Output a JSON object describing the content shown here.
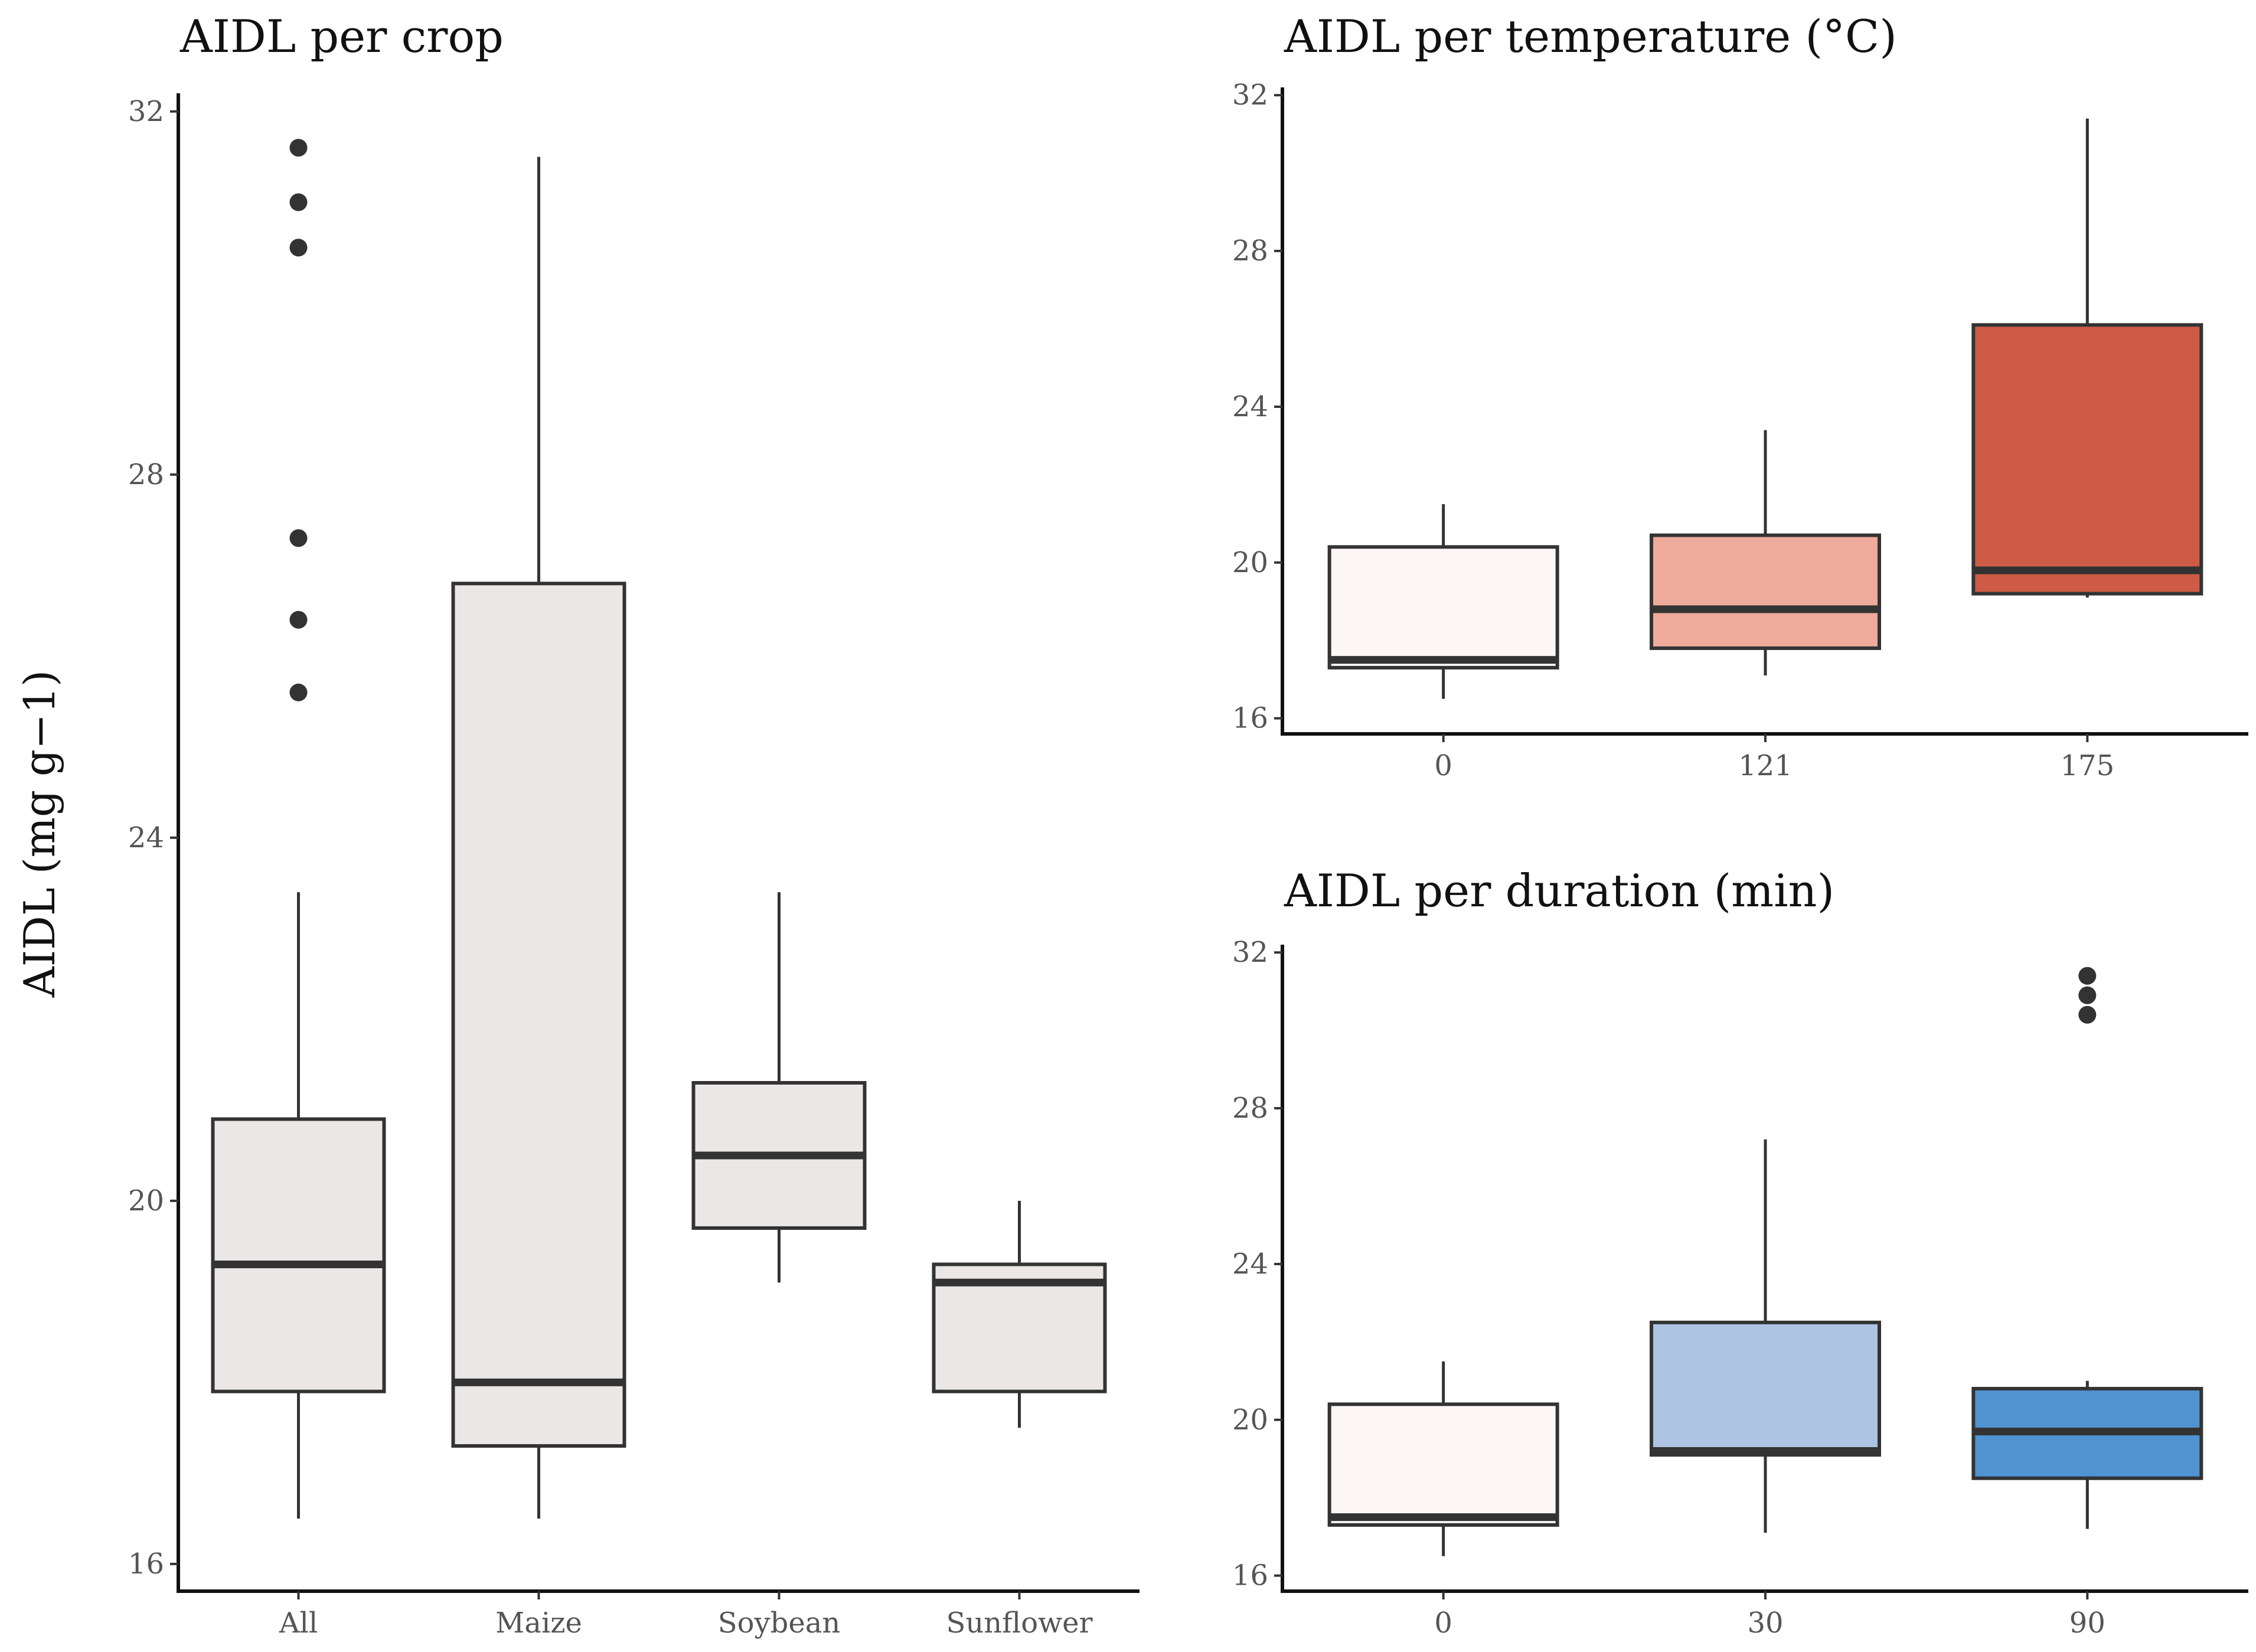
{
  "chart_data": [
    {
      "type": "box",
      "title": "AIDL per crop",
      "ylabel": "AIDL (mg g−1)",
      "xlabel": "",
      "ylim": [
        15.7,
        32.2
      ],
      "yticks": [
        16,
        20,
        24,
        28,
        32
      ],
      "categories": [
        "All",
        "Maize",
        "Soybean",
        "Sunflower"
      ],
      "boxes": [
        {
          "category": "All",
          "whisker_low": 16.5,
          "q1": 17.9,
          "median": 19.3,
          "q3": 20.9,
          "whisker_high": 23.4,
          "outliers": [
            25.6,
            26.4,
            27.3,
            30.5,
            31.0,
            31.6
          ],
          "fill": "#ebe7e6"
        },
        {
          "category": "Maize",
          "whisker_low": 16.5,
          "q1": 17.3,
          "median": 18.0,
          "q3": 26.8,
          "whisker_high": 31.5,
          "outliers": [],
          "fill": "#ebe7e6"
        },
        {
          "category": "Soybean",
          "whisker_low": 19.1,
          "q1": 19.7,
          "median": 20.5,
          "q3": 21.3,
          "whisker_high": 23.4,
          "outliers": [],
          "fill": "#ebe7e6"
        },
        {
          "category": "Sunflower",
          "whisker_low": 17.5,
          "q1": 17.9,
          "median": 19.1,
          "q3": 19.3,
          "whisker_high": 20.0,
          "outliers": [],
          "fill": "#ebe7e6"
        }
      ]
    },
    {
      "type": "box",
      "title": "AIDL per temperature (°C)",
      "ylabel": "",
      "xlabel": "",
      "ylim": [
        15.6,
        32.2
      ],
      "yticks": [
        16,
        20,
        24,
        28,
        32
      ],
      "categories": [
        "0",
        "121",
        "175"
      ],
      "boxes": [
        {
          "category": "0",
          "whisker_low": 16.5,
          "q1": 17.3,
          "median": 17.5,
          "q3": 20.4,
          "whisker_high": 21.5,
          "outliers": [],
          "fill": "#fcf7f6"
        },
        {
          "category": "121",
          "whisker_low": 17.1,
          "q1": 17.8,
          "median": 18.8,
          "q3": 20.7,
          "whisker_high": 23.4,
          "outliers": [],
          "fill": "#eeaa9b"
        },
        {
          "category": "175",
          "whisker_low": 19.1,
          "q1": 19.2,
          "median": 19.8,
          "q3": 26.1,
          "whisker_high": 31.4,
          "outliers": [],
          "fill": "#cd5b46"
        }
      ]
    },
    {
      "type": "box",
      "title": "AIDL per duration (min)",
      "ylabel": "",
      "xlabel": "",
      "ylim": [
        15.6,
        32.2
      ],
      "yticks": [
        16,
        20,
        24,
        28,
        32
      ],
      "categories": [
        "0",
        "30",
        "90"
      ],
      "boxes": [
        {
          "category": "0",
          "whisker_low": 16.5,
          "q1": 17.3,
          "median": 17.5,
          "q3": 20.4,
          "whisker_high": 21.5,
          "outliers": [],
          "fill": "#fcf7f6"
        },
        {
          "category": "30",
          "whisker_low": 17.1,
          "q1": 19.1,
          "median": 19.2,
          "q3": 22.5,
          "whisker_high": 27.2,
          "outliers": [],
          "fill": "#adc4e3"
        },
        {
          "category": "90",
          "whisker_low": 17.2,
          "q1": 18.5,
          "median": 19.7,
          "q3": 20.8,
          "whisker_high": 21.0,
          "outliers": [
            30.4,
            30.9,
            31.4
          ],
          "fill": "#4f93d1"
        }
      ]
    }
  ]
}
